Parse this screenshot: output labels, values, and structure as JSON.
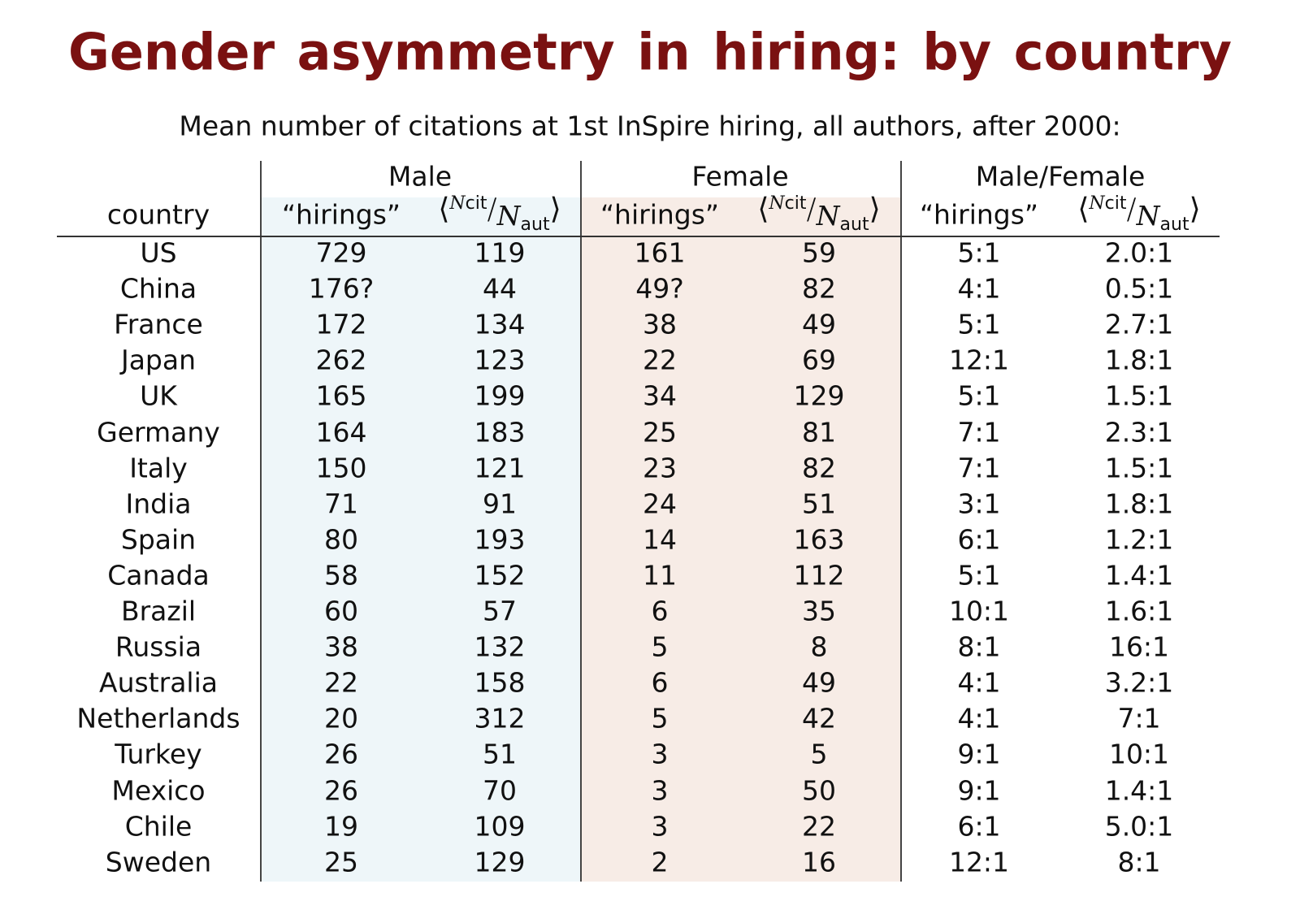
{
  "title": "Gender asymmetry in hiring:  by country",
  "subtitle": "Mean number of citations at 1st InSpire hiring, all authors, after 2000:",
  "table": {
    "groups": [
      "Male",
      "Female",
      "Male/Female"
    ],
    "columns": [
      "country",
      "“hirings”",
      [
        "⟨",
        "N",
        "cit",
        "/",
        "N",
        "aut",
        "⟩"
      ],
      "“hirings”",
      [
        "⟨",
        "N",
        "cit",
        "/",
        "N",
        "aut",
        "⟩"
      ],
      "“hirings”",
      [
        "⟨",
        "N",
        "cit",
        "/",
        "N",
        "aut",
        "⟩"
      ]
    ],
    "rows": [
      [
        "US",
        "729",
        "119",
        "161",
        "59",
        "5:1",
        "2.0:1"
      ],
      [
        "China",
        "176?",
        "44",
        "49?",
        "82",
        "4:1",
        "0.5:1"
      ],
      [
        "France",
        "172",
        "134",
        "38",
        "49",
        "5:1",
        "2.7:1"
      ],
      [
        "Japan",
        "262",
        "123",
        "22",
        "69",
        "12:1",
        "1.8:1"
      ],
      [
        "UK",
        "165",
        "199",
        "34",
        "129",
        "5:1",
        "1.5:1"
      ],
      [
        "Germany",
        "164",
        "183",
        "25",
        "81",
        "7:1",
        "2.3:1"
      ],
      [
        "Italy",
        "150",
        "121",
        "23",
        "82",
        "7:1",
        "1.5:1"
      ],
      [
        "India",
        "71",
        "91",
        "24",
        "51",
        "3:1",
        "1.8:1"
      ],
      [
        "Spain",
        "80",
        "193",
        "14",
        "163",
        "6:1",
        "1.2:1"
      ],
      [
        "Canada",
        "58",
        "152",
        "11",
        "112",
        "5:1",
        "1.4:1"
      ],
      [
        "Brazil",
        "60",
        "57",
        "6",
        "35",
        "10:1",
        "1.6:1"
      ],
      [
        "Russia",
        "38",
        "132",
        "5",
        "8",
        "8:1",
        "16:1"
      ],
      [
        "Australia",
        "22",
        "158",
        "6",
        "49",
        "4:1",
        "3.2:1"
      ],
      [
        "Netherlands",
        "20",
        "312",
        "5",
        "42",
        "4:1",
        "7:1"
      ],
      [
        "Turkey",
        "26",
        "51",
        "3",
        "5",
        "9:1",
        "10:1"
      ],
      [
        "Mexico",
        "26",
        "70",
        "3",
        "50",
        "9:1",
        "1.4:1"
      ],
      [
        "Chile",
        "19",
        "109",
        "3",
        "22",
        "6:1",
        "5.0:1"
      ],
      [
        "Sweden",
        "25",
        "129",
        "2",
        "16",
        "12:1",
        "8:1"
      ]
    ]
  }
}
